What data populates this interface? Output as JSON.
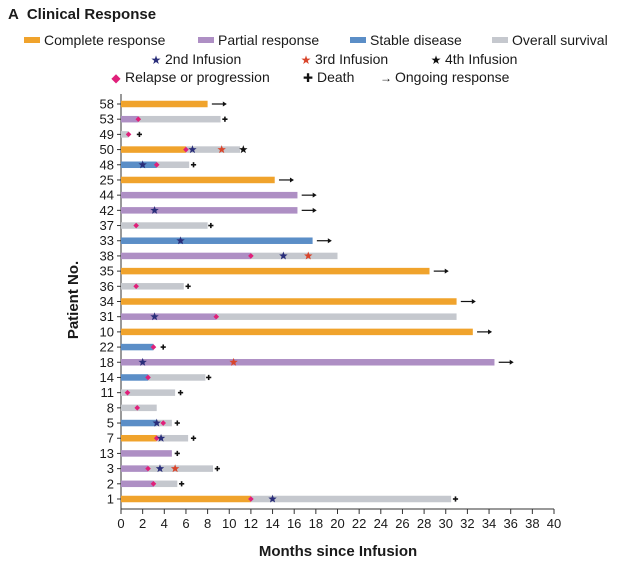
{
  "panel": {
    "letter": "A",
    "title": "Clinical Response"
  },
  "legend": {
    "bars": [
      {
        "label": "Complete response",
        "color": "#f0a32c"
      },
      {
        "label": "Partial response",
        "color": "#ae8fc4"
      },
      {
        "label": "Stable disease",
        "color": "#5b8ec7"
      },
      {
        "label": "Overall survival",
        "color": "#c5c8ce"
      }
    ],
    "markers": [
      {
        "label": "2nd Infusion",
        "glyph": "★",
        "color": "#2a2e7a"
      },
      {
        "label": "3rd Infusion",
        "glyph": "★",
        "color": "#d9452b"
      },
      {
        "label": "4th Infusion",
        "glyph": "★",
        "color": "#111111"
      },
      {
        "label": "Relapse or progression",
        "glyph": "◆",
        "color": "#e0207a"
      },
      {
        "label": "Death",
        "glyph": "✚",
        "color": "#111111"
      },
      {
        "label": "Ongoing response",
        "glyph": "→",
        "color": "#111111"
      }
    ]
  },
  "chart_data": {
    "type": "bar",
    "orientation": "horizontal",
    "xlabel": "Months since Infusion",
    "ylabel": "Patient No.",
    "xlim": [
      0,
      40
    ],
    "xticks": [
      "0",
      "2",
      "4",
      "6",
      "8",
      "10",
      "12",
      "14",
      "16",
      "18",
      "20",
      "22",
      "24",
      "26",
      "28",
      "30",
      "32",
      "34",
      "36",
      "38",
      "40"
    ],
    "grid": false,
    "colors": {
      "complete": "#f0a32c",
      "partial": "#ae8fc4",
      "stable": "#5b8ec7",
      "survival": "#c5c8ce",
      "second": "#2a2e7a",
      "third": "#d9452b",
      "fourth": "#111111",
      "relapse": "#e0207a",
      "death": "#111111",
      "ongoing": "#111111"
    },
    "patients": [
      {
        "id": "58",
        "segments": [
          {
            "type": "complete",
            "start": 0,
            "end": 8.0
          }
        ],
        "ongoing": 8.3
      },
      {
        "id": "53",
        "segments": [
          {
            "type": "partial",
            "start": 0,
            "end": 1.6
          },
          {
            "type": "survival",
            "start": 1.6,
            "end": 9.2
          }
        ],
        "relapse": [
          1.6
        ],
        "death": 9.6
      },
      {
        "id": "49",
        "segments": [
          {
            "type": "survival",
            "start": 0,
            "end": 0.7
          }
        ],
        "relapse": [
          0.7
        ],
        "death": 1.7
      },
      {
        "id": "50",
        "segments": [
          {
            "type": "complete",
            "start": 0,
            "end": 6.0
          },
          {
            "type": "survival",
            "start": 6.0,
            "end": 11.0
          }
        ],
        "relapse": [
          6.0
        ],
        "second": [
          6.6
        ],
        "third": [
          9.3
        ],
        "fourth": [
          11.3
        ]
      },
      {
        "id": "48",
        "segments": [
          {
            "type": "stable",
            "start": 0,
            "end": 3.3
          },
          {
            "type": "survival",
            "start": 3.3,
            "end": 6.3
          }
        ],
        "second": [
          2.0
        ],
        "relapse": [
          3.3
        ],
        "death": 6.7
      },
      {
        "id": "25",
        "segments": [
          {
            "type": "complete",
            "start": 0,
            "end": 14.2
          }
        ],
        "ongoing": 14.5
      },
      {
        "id": "44",
        "segments": [
          {
            "type": "partial",
            "start": 0,
            "end": 16.3
          }
        ],
        "ongoing": 16.6
      },
      {
        "id": "42",
        "segments": [
          {
            "type": "partial",
            "start": 0,
            "end": 16.3
          }
        ],
        "second": [
          3.1
        ],
        "ongoing": 16.6
      },
      {
        "id": "37",
        "segments": [
          {
            "type": "survival",
            "start": 0,
            "end": 8.0
          }
        ],
        "relapse": [
          1.4
        ],
        "death": 8.3
      },
      {
        "id": "33",
        "segments": [
          {
            "type": "stable",
            "start": 0,
            "end": 17.7
          }
        ],
        "second": [
          5.5
        ],
        "ongoing": 18.0
      },
      {
        "id": "38",
        "segments": [
          {
            "type": "partial",
            "start": 0,
            "end": 12.0
          },
          {
            "type": "survival",
            "start": 12.0,
            "end": 20.0
          }
        ],
        "relapse": [
          12.0
        ],
        "second": [
          15.0
        ],
        "third": [
          17.3
        ]
      },
      {
        "id": "35",
        "segments": [
          {
            "type": "complete",
            "start": 0,
            "end": 28.5
          }
        ],
        "ongoing": 28.8
      },
      {
        "id": "36",
        "segments": [
          {
            "type": "survival",
            "start": 0,
            "end": 5.8
          }
        ],
        "relapse": [
          1.4
        ],
        "death": 6.2
      },
      {
        "id": "34",
        "segments": [
          {
            "type": "complete",
            "start": 0,
            "end": 31.0
          }
        ],
        "ongoing": 31.3
      },
      {
        "id": "31",
        "segments": [
          {
            "type": "partial",
            "start": 0,
            "end": 8.8
          },
          {
            "type": "survival",
            "start": 8.8,
            "end": 31.0
          }
        ],
        "second": [
          3.1
        ],
        "relapse": [
          8.8
        ]
      },
      {
        "id": "10",
        "segments": [
          {
            "type": "complete",
            "start": 0,
            "end": 32.5
          }
        ],
        "ongoing": 32.8
      },
      {
        "id": "22",
        "segments": [
          {
            "type": "stable",
            "start": 0,
            "end": 3.0
          }
        ],
        "relapse": [
          3.0
        ],
        "death": 3.9
      },
      {
        "id": "18",
        "segments": [
          {
            "type": "partial",
            "start": 0,
            "end": 34.5
          }
        ],
        "second": [
          2.0
        ],
        "third": [
          10.4
        ],
        "ongoing": 34.8
      },
      {
        "id": "14",
        "segments": [
          {
            "type": "stable",
            "start": 0,
            "end": 2.5
          },
          {
            "type": "survival",
            "start": 2.5,
            "end": 7.8
          }
        ],
        "relapse": [
          2.5
        ],
        "death": 8.1
      },
      {
        "id": "11",
        "segments": [
          {
            "type": "survival",
            "start": 0,
            "end": 5.0
          }
        ],
        "relapse": [
          0.6
        ],
        "death": 5.5
      },
      {
        "id": "8",
        "segments": [
          {
            "type": "survival",
            "start": 0,
            "end": 3.3
          }
        ],
        "relapse": [
          1.5
        ]
      },
      {
        "id": "5",
        "segments": [
          {
            "type": "stable",
            "start": 0,
            "end": 3.3
          },
          {
            "type": "survival",
            "start": 3.3,
            "end": 4.7
          }
        ],
        "second": [
          3.3
        ],
        "relapse": [
          3.9
        ],
        "death": 5.2
      },
      {
        "id": "7",
        "segments": [
          {
            "type": "complete",
            "start": 0,
            "end": 3.3
          },
          {
            "type": "survival",
            "start": 3.3,
            "end": 6.2
          }
        ],
        "relapse": [
          3.3
        ],
        "second": [
          3.7
        ],
        "death": 6.7
      },
      {
        "id": "13",
        "segments": [
          {
            "type": "partial",
            "start": 0,
            "end": 4.7
          }
        ],
        "death": 5.2
      },
      {
        "id": "3",
        "segments": [
          {
            "type": "partial",
            "start": 0,
            "end": 2.5
          },
          {
            "type": "survival",
            "start": 2.5,
            "end": 8.5
          }
        ],
        "relapse": [
          2.5
        ],
        "second": [
          3.6
        ],
        "third": [
          5.0
        ],
        "death": 8.9
      },
      {
        "id": "2",
        "segments": [
          {
            "type": "partial",
            "start": 0,
            "end": 3.0
          },
          {
            "type": "survival",
            "start": 3.0,
            "end": 5.2
          }
        ],
        "relapse": [
          3.0
        ],
        "death": 5.6
      },
      {
        "id": "1",
        "segments": [
          {
            "type": "complete",
            "start": 0,
            "end": 12.0
          },
          {
            "type": "survival",
            "start": 12.0,
            "end": 30.5
          }
        ],
        "relapse": [
          12.0
        ],
        "second": [
          14.0
        ],
        "death": 30.9
      }
    ]
  }
}
